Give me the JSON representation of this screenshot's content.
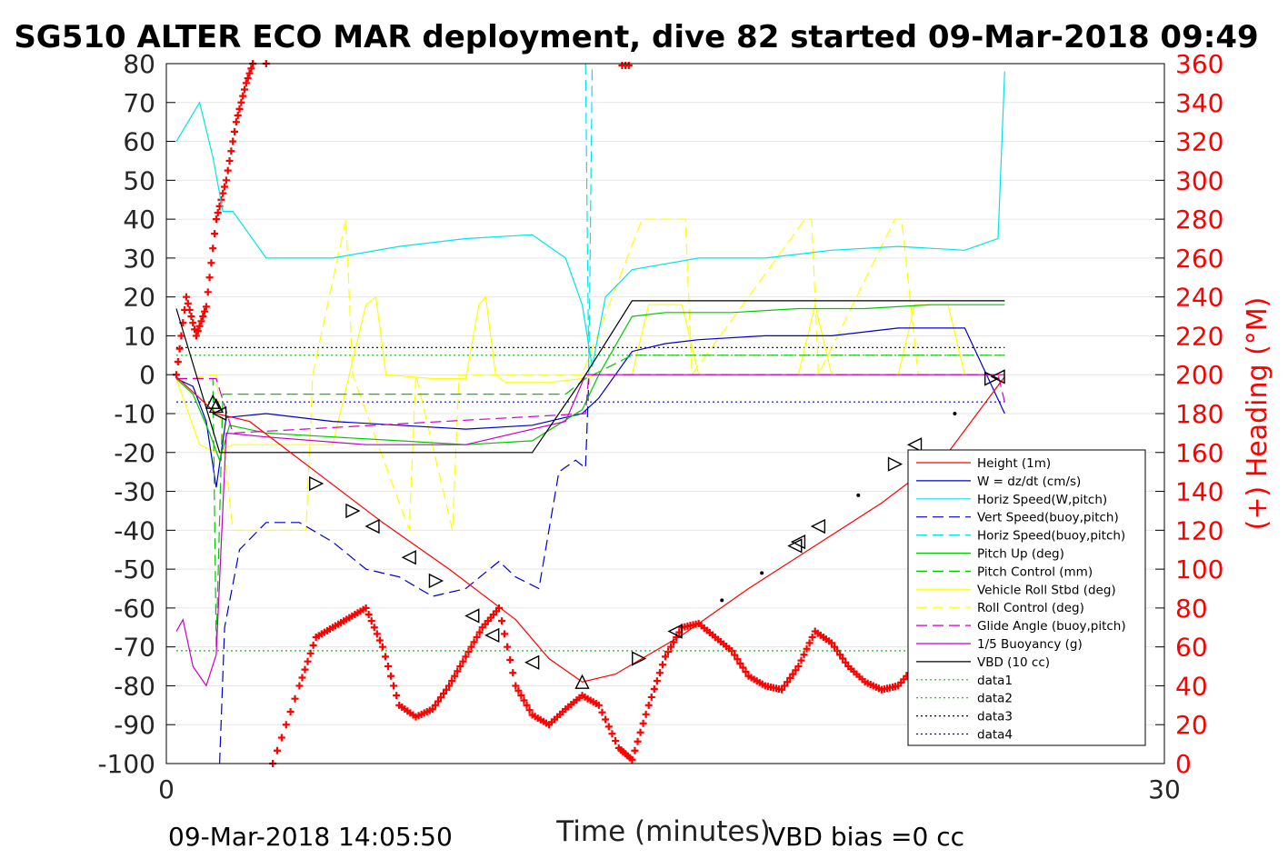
{
  "chart_data": {
    "type": "line",
    "title": "SG510 ALTER ECO MAR deployment, dive 82 started 09-Mar-2018 09:49",
    "xlabel": "Time (minutes)",
    "ylabel_right": "(+) Heading (°M)",
    "xlim": [
      0,
      30
    ],
    "ylim": [
      -100,
      80
    ],
    "ylim_right": [
      0,
      360
    ],
    "xticks": [
      "0",
      "30"
    ],
    "yticks": [
      "80",
      "70",
      "60",
      "50",
      "40",
      "30",
      "20",
      "10",
      "0",
      "-10",
      "-20",
      "-30",
      "-40",
      "-50",
      "-60",
      "-70",
      "-80",
      "-90",
      "-100"
    ],
    "yticks_right": [
      "360",
      "340",
      "320",
      "300",
      "280",
      "260",
      "240",
      "220",
      "200",
      "180",
      "160",
      "140",
      "120",
      "100",
      "80",
      "60",
      "40",
      "20",
      "0"
    ],
    "footer_left": "09-Mar-2018 14:05:50",
    "footer_right": "VBD bias =0 cc",
    "grid": true,
    "legend_position": "lower-right",
    "colors": {
      "height": "#ff0000",
      "w": "#0000c8",
      "horiz": "#00e5e5",
      "pitch": "#00c800",
      "roll": "#ffff00",
      "glide": "#c800c8",
      "vbd": "#000000",
      "heading": "#ff0000",
      "right_axis": "#ff0000"
    },
    "legend": [
      {
        "label": "Height (1m)",
        "color": "#ff0000",
        "dash": ""
      },
      {
        "label": "W = dz/dt (cm/s)",
        "color": "#0000c8",
        "dash": ""
      },
      {
        "label": "Horiz Speed(W,pitch)",
        "color": "#00e5e5",
        "dash": ""
      },
      {
        "label": "Vert Speed(buoy,pitch)",
        "color": "#0000c8",
        "dash": "12,6"
      },
      {
        "label": "Horiz Speed(buoy,pitch)",
        "color": "#00e5e5",
        "dash": "12,6"
      },
      {
        "label": "Pitch Up (deg)",
        "color": "#00c800",
        "dash": ""
      },
      {
        "label": "Pitch Control (mm)",
        "color": "#00c800",
        "dash": "12,6"
      },
      {
        "label": "Vehicle Roll Stbd (deg)",
        "color": "#ffff00",
        "dash": ""
      },
      {
        "label": "Roll Control (deg)",
        "color": "#ffff00",
        "dash": "12,6"
      },
      {
        "label": "Glide Angle (buoy,pitch)",
        "color": "#c800c8",
        "dash": "12,6"
      },
      {
        "label": "1/5 Buoyancy (g)",
        "color": "#c800c8",
        "dash": ""
      },
      {
        "label": "VBD (10 cc)",
        "color": "#000000",
        "dash": ""
      },
      {
        "label": "data1",
        "color": "#00c800",
        "dash": "2,3"
      },
      {
        "label": "data2",
        "color": "#00c800",
        "dash": "2,3"
      },
      {
        "label": "data3",
        "color": "#000000",
        "dash": "2,3"
      },
      {
        "label": "data4",
        "color": "#0000c8",
        "dash": "2,3"
      }
    ],
    "series": [
      {
        "name": "Height (1m)",
        "x": [
          0.3,
          1.5,
          2.5,
          4.5,
          6.5,
          8.5,
          10.5,
          11.5,
          12.5,
          13.5,
          15.5,
          17.5,
          19.5,
          21.5,
          23.5,
          25.2
        ],
        "y": [
          -0.5,
          -10,
          -12,
          -25,
          -38,
          -50,
          -63,
          -73,
          -79,
          -77,
          -67,
          -55,
          -44,
          -33,
          -20,
          -0.5
        ]
      },
      {
        "name": "W = dz/dt (cm/s)",
        "x": [
          0.3,
          0.8,
          1.2,
          1.5,
          1.8,
          3,
          5,
          7,
          9,
          11,
          12.5,
          13,
          14,
          15,
          16,
          18,
          20,
          22,
          24,
          25.2
        ],
        "y": [
          -1,
          -3,
          -12,
          -29,
          -11,
          -10,
          -12,
          -13,
          -14,
          -13,
          -10,
          -6,
          6,
          8,
          9,
          10,
          10,
          12,
          12,
          -10
        ]
      },
      {
        "name": "Horiz Speed(W,pitch)",
        "x": [
          0.3,
          1.0,
          1.4,
          1.7,
          2.0,
          3,
          5,
          7,
          9,
          11,
          12,
          12.5,
          12.8,
          13.2,
          14,
          16,
          18,
          20,
          22,
          24,
          25,
          25.2
        ],
        "y": [
          60,
          70,
          56,
          42,
          42,
          30,
          30,
          33,
          35,
          36,
          30,
          18,
          2,
          20,
          27,
          30,
          30,
          32,
          33,
          32,
          35,
          78
        ]
      },
      {
        "name": "Vert Speed(buoy,pitch)",
        "x": [
          1.6,
          1.75,
          2.2,
          3,
          4,
          5,
          6,
          7,
          8,
          9,
          10,
          10.5,
          11.2,
          11.8,
          12.3,
          12.6,
          12.7
        ],
        "y": [
          -100,
          -65,
          -45,
          -38,
          -38,
          -43,
          -50,
          -52,
          -57,
          -55,
          -48,
          -52,
          -55,
          -25,
          -22,
          -24,
          -1
        ]
      },
      {
        "name": "Horiz Speed(buoy,pitch)",
        "x": [
          12.6,
          12.7,
          12.8
        ],
        "y": [
          80,
          0,
          80
        ]
      },
      {
        "name": "Pitch Up (deg)",
        "x": [
          0.3,
          0.8,
          1.3,
          1.6,
          1.9,
          3,
          5,
          7,
          9,
          11,
          12.5,
          13,
          14,
          15,
          17,
          19,
          21,
          23,
          25.2
        ],
        "y": [
          -1,
          -5,
          -15,
          -22,
          -13,
          -15,
          -16,
          -17,
          -18,
          -17,
          -9,
          0,
          15,
          16,
          16,
          17,
          17,
          18,
          18
        ]
      },
      {
        "name": "Pitch Control (mm)",
        "x": [
          0.3,
          1.4,
          1.5,
          1.7,
          2.0,
          12.0,
          12.6,
          14,
          25.2
        ],
        "y": [
          -1,
          -1,
          -70,
          -5,
          -5,
          -5,
          -1,
          5,
          5
        ]
      },
      {
        "name": "Vehicle Roll Stbd (deg)",
        "x": [
          0.3,
          1.0,
          1.5,
          2.0,
          5,
          5.5,
          6,
          6.3,
          6.6,
          8,
          9,
          9.4,
          9.6,
          9.9,
          10.2,
          11.5,
          12.5,
          13,
          14,
          14.5,
          15.5,
          16,
          19,
          19.5,
          20,
          22,
          22.5,
          23.5,
          24,
          25.2
        ],
        "y": [
          -1,
          -18,
          -20,
          -18,
          -18,
          0,
          18,
          20,
          0,
          -1,
          -1,
          18,
          20,
          0,
          -2,
          -2,
          -1,
          0,
          0,
          18,
          18,
          0,
          0,
          18,
          0,
          0,
          18,
          18,
          0,
          0
        ]
      },
      {
        "name": "Roll Control (deg)",
        "x": [
          0.3,
          0.7,
          1.5,
          2.0,
          4.2,
          4.4,
          5.4,
          5.6,
          7.3,
          7.5,
          8.6,
          8.8,
          12.5,
          14.3,
          14.5,
          15.6,
          15.8,
          19.2,
          19.4,
          19.6,
          21.9,
          22.1,
          22.6,
          22.8,
          25.2
        ],
        "y": [
          -1,
          -1,
          0,
          -40,
          -40,
          0,
          40,
          0,
          -40,
          0,
          -40,
          0,
          0,
          40,
          40,
          40,
          0,
          40,
          40,
          0,
          40,
          40,
          0,
          0,
          0
        ]
      },
      {
        "name": "Glide Angle (buoy,pitch)",
        "x": [
          0.3,
          1.5,
          2.0,
          12.6,
          12.7,
          25.0,
          25.2
        ],
        "y": [
          -1,
          -1,
          -15,
          -10,
          0,
          0,
          -7
        ]
      },
      {
        "name": "1/5 Buoyancy (g)",
        "x": [
          0.3,
          0.5,
          0.8,
          1.2,
          1.5,
          1.8,
          3,
          6,
          9,
          12,
          12.6,
          25.2
        ],
        "y": [
          -66,
          -63,
          -75,
          -80,
          -72,
          -15,
          -16,
          -18,
          -18,
          -12,
          0,
          0
        ]
      },
      {
        "name": "VBD (10 cc)",
        "x": [
          0.3,
          1.6,
          11.0,
          12.6,
          14.0,
          25.2
        ],
        "y": [
          17,
          -20,
          -20,
          0,
          19,
          19
        ]
      },
      {
        "name": "data1",
        "x": [
          0.3,
          25.2
        ],
        "y": [
          -71,
          -71
        ]
      },
      {
        "name": "data2",
        "x": [
          0.3,
          25.2
        ],
        "y": [
          5,
          5
        ]
      },
      {
        "name": "data3",
        "x": [
          0.3,
          25.2
        ],
        "y": [
          7,
          7
        ]
      },
      {
        "name": "data4",
        "x": [
          0.3,
          25.2
        ],
        "y": [
          -7,
          -7
        ]
      }
    ],
    "heading_series": {
      "name": "(+) Heading (°M)",
      "x": [
        0.3,
        0.6,
        0.9,
        1.2,
        1.5,
        1.8,
        2.1,
        2.4,
        2.7,
        3.0,
        3.2,
        4.0,
        4.5,
        5.0,
        5.5,
        6.0,
        6.5,
        7.0,
        7.5,
        8.0,
        8.5,
        9.0,
        9.5,
        10.0,
        10.5,
        11.0,
        11.5,
        12.0,
        12.5,
        13.0,
        13.6,
        14.0,
        14.5,
        15.0,
        15.5,
        16.0,
        16.5,
        17.0,
        17.5,
        18.0,
        18.5,
        19.0,
        19.5,
        20.0,
        20.5,
        21.0,
        21.5,
        22.0,
        22.5,
        23.0,
        23.5,
        24.0,
        24.5,
        25.0
      ],
      "y": [
        200,
        240,
        220,
        235,
        280,
        300,
        330,
        350,
        365,
        375,
        0,
        40,
        65,
        70,
        75,
        80,
        60,
        30,
        24,
        28,
        40,
        55,
        70,
        80,
        40,
        25,
        20,
        28,
        35,
        30,
        8,
        2,
        30,
        55,
        70,
        72,
        65,
        58,
        45,
        40,
        38,
        50,
        68,
        62,
        50,
        42,
        38,
        40,
        50,
        60,
        70,
        80,
        65,
        55
      ]
    },
    "heading_top_marks": {
      "x": [
        13.7,
        13.8,
        13.9
      ],
      "y": [
        360,
        360,
        360
      ]
    },
    "markers": {
      "triangles": [
        {
          "x": 1.4,
          "y": -7,
          "dir": "up"
        },
        {
          "x": 1.5,
          "y": -8,
          "dir": "up"
        },
        {
          "x": 1.6,
          "y": -10,
          "dir": "left"
        },
        {
          "x": 4.5,
          "y": -28,
          "dir": "right"
        },
        {
          "x": 5.6,
          "y": -35,
          "dir": "right"
        },
        {
          "x": 6.2,
          "y": -39,
          "dir": "left"
        },
        {
          "x": 7.3,
          "y": -47,
          "dir": "left"
        },
        {
          "x": 8.1,
          "y": -53,
          "dir": "right"
        },
        {
          "x": 9.2,
          "y": -62,
          "dir": "left"
        },
        {
          "x": 9.8,
          "y": -67,
          "dir": "left"
        },
        {
          "x": 11.0,
          "y": -74,
          "dir": "left"
        },
        {
          "x": 12.5,
          "y": -79,
          "dir": "up"
        },
        {
          "x": 14.2,
          "y": -73,
          "dir": "right"
        },
        {
          "x": 15.3,
          "y": -66,
          "dir": "left"
        },
        {
          "x": 18.9,
          "y": -44,
          "dir": "left"
        },
        {
          "x": 19.0,
          "y": -43,
          "dir": "left"
        },
        {
          "x": 19.6,
          "y": -39,
          "dir": "left"
        },
        {
          "x": 21.9,
          "y": -23,
          "dir": "right"
        },
        {
          "x": 22.5,
          "y": -18,
          "dir": "left"
        },
        {
          "x": 24.8,
          "y": -1,
          "dir": "right"
        },
        {
          "x": 25.0,
          "y": -0.5,
          "dir": "left"
        }
      ],
      "dots": [
        {
          "x": 16.7,
          "y": -58
        },
        {
          "x": 17.9,
          "y": -51
        },
        {
          "x": 20.8,
          "y": -31
        },
        {
          "x": 23.7,
          "y": -10
        }
      ]
    }
  }
}
